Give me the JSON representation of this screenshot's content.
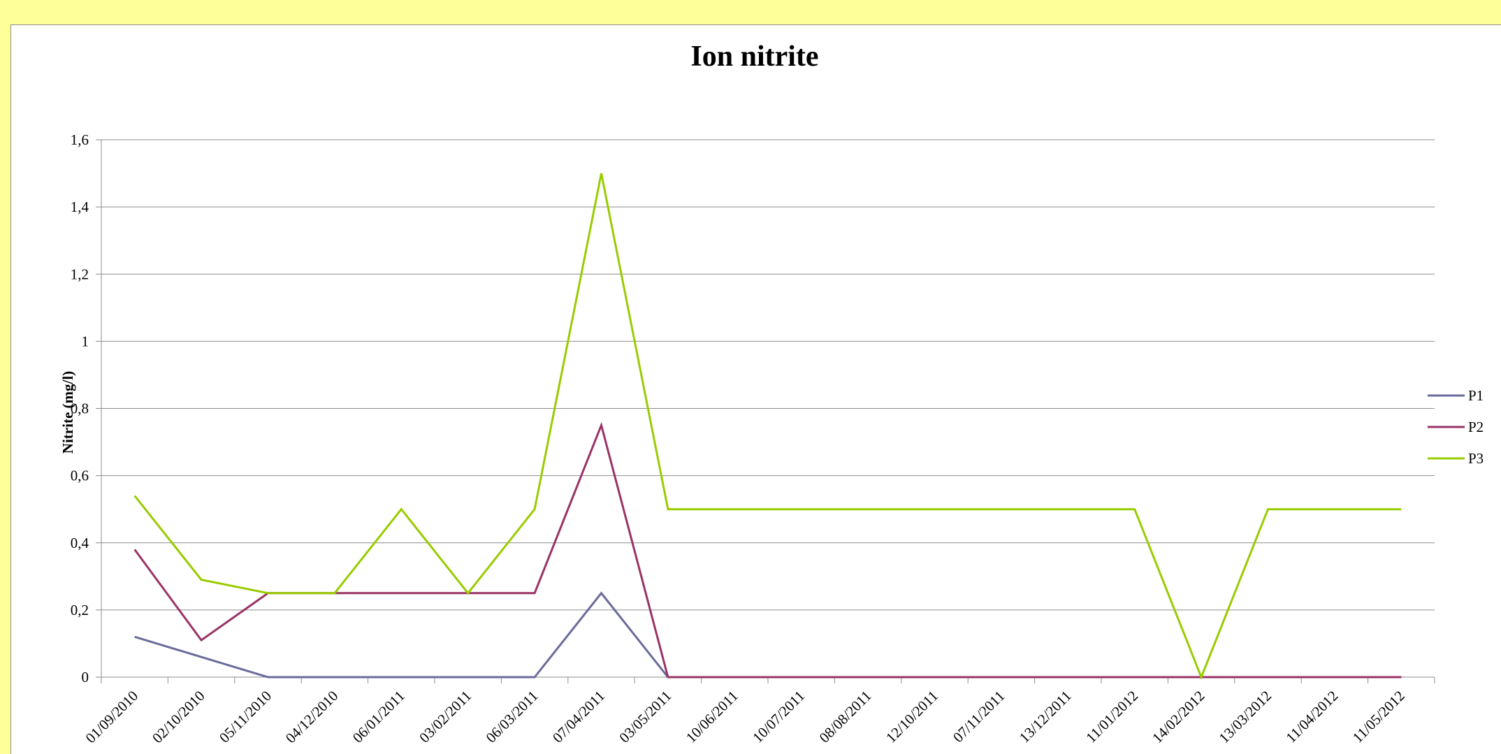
{
  "chart_data": {
    "type": "line",
    "title": "Ion nitrite",
    "ylabel": "Nitrite (mg/l)",
    "xlabel": "",
    "ylim": [
      0,
      1.6
    ],
    "yticks": [
      "0",
      "0,2",
      "0,4",
      "0,6",
      "0,8",
      "1",
      "1,2",
      "1,4",
      "1,6"
    ],
    "ytick_values": [
      0,
      0.2,
      0.4,
      0.6,
      0.8,
      1.0,
      1.2,
      1.4,
      1.6
    ],
    "categories": [
      "01/09/2010",
      "02/10/2010",
      "05/11/2010",
      "04/12/2010",
      "06/01/2011",
      "03/02/2011",
      "06/03/2011",
      "07/04/2011",
      "03/05/2011",
      "10/06/2011",
      "10/07/2011",
      "08/08/2011",
      "12/10/2011",
      "07/11/2011",
      "13/12/2011",
      "11/01/2012",
      "14/02/2012",
      "13/03/2012",
      "11/04/2012",
      "11/05/2012"
    ],
    "grid": true,
    "legend_position": "right",
    "series": [
      {
        "name": "P1",
        "color": "#6a6a9c",
        "values": [
          0.12,
          0.06,
          0,
          0,
          0,
          0,
          0,
          0.25,
          0,
          0,
          0,
          0,
          0,
          0,
          0,
          0,
          0,
          0,
          0,
          0
        ]
      },
      {
        "name": "P2",
        "color": "#993366",
        "values": [
          0.38,
          0.11,
          0.25,
          0.25,
          0.25,
          0.25,
          0.25,
          0.75,
          0,
          0,
          0,
          0,
          0,
          0,
          0,
          0,
          0,
          0,
          0,
          0
        ]
      },
      {
        "name": "P3",
        "color": "#99cc00",
        "values": [
          0.54,
          0.29,
          0.25,
          0.25,
          0.5,
          0.25,
          0.5,
          1.5,
          0.5,
          0.5,
          0.5,
          0.5,
          0.5,
          0.5,
          0.5,
          0.5,
          0,
          0.5,
          0.5,
          0.5
        ]
      }
    ]
  }
}
